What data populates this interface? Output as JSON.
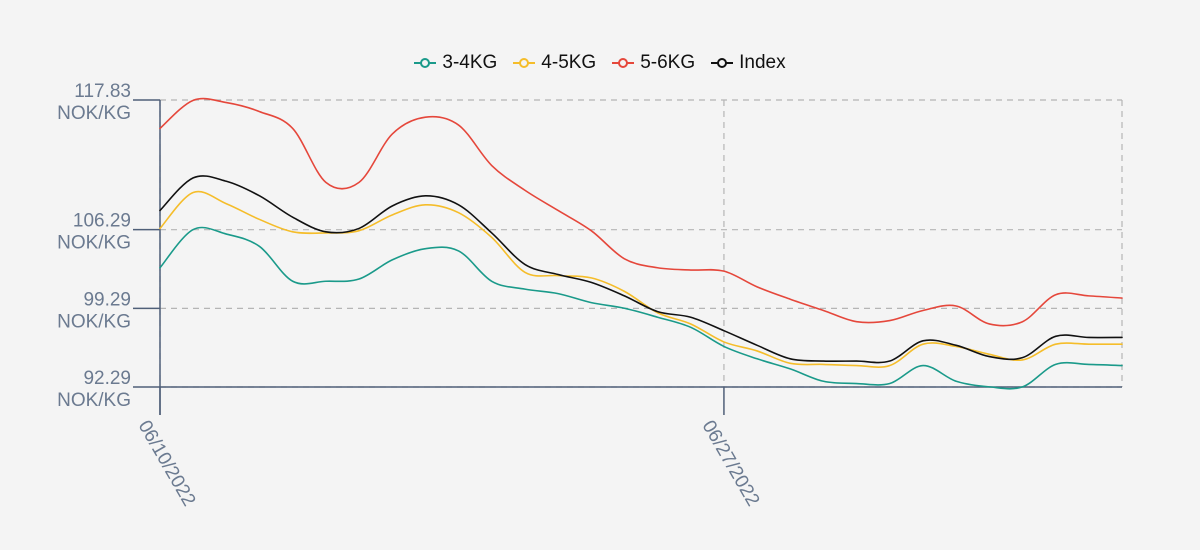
{
  "colors": {
    "series": [
      "#1a9a8a",
      "#f5bd2a",
      "#e5473b",
      "#111111"
    ],
    "axis": "#4f5f78",
    "grid": "#b5b5b5",
    "tick_text": "#6b7a90",
    "background": "#f4f4f4"
  },
  "chart_data": {
    "type": "line",
    "title": "",
    "xlabel": "",
    "ylabel": "",
    "unit": "NOK/KG",
    "legend_position": "top-center",
    "grid": true,
    "ylim": [
      92.29,
      117.83
    ],
    "y_ticks": [
      {
        "value": 117.83,
        "label_value": "117.83",
        "label_unit": "NOK/KG"
      },
      {
        "value": 106.29,
        "label_value": "106.29",
        "label_unit": "NOK/KG"
      },
      {
        "value": 99.29,
        "label_value": "99.29",
        "label_unit": "NOK/KG"
      },
      {
        "value": 92.29,
        "label_value": "92.29",
        "label_unit": "NOK/KG"
      }
    ],
    "x_ticks": [
      {
        "index": 0,
        "label": "06/10/2022"
      },
      {
        "index": 17,
        "label": "06/27/2022"
      }
    ],
    "x_count": 30,
    "series": [
      {
        "name": "3-4KG",
        "values": [
          102.9,
          106.3,
          105.9,
          104.8,
          101.7,
          101.7,
          101.9,
          103.6,
          104.6,
          104.4,
          101.7,
          101.0,
          100.6,
          99.8,
          99.3,
          98.5,
          97.6,
          95.9,
          94.8,
          93.9,
          92.8,
          92.6,
          92.6,
          94.2,
          92.8,
          92.3,
          92.3,
          94.3,
          94.3,
          94.2
        ]
      },
      {
        "name": "4-5KG",
        "values": [
          106.4,
          109.6,
          108.6,
          107.2,
          106.1,
          106.0,
          106.2,
          107.6,
          108.5,
          107.8,
          105.6,
          102.5,
          102.2,
          102.0,
          100.8,
          98.9,
          97.9,
          96.3,
          95.5,
          94.4,
          94.3,
          94.2,
          94.2,
          96.1,
          95.9,
          95.2,
          94.7,
          96.1,
          96.1,
          96.1
        ]
      },
      {
        "name": "5-6KG",
        "values": [
          115.3,
          117.8,
          117.6,
          116.8,
          115.3,
          110.5,
          110.5,
          114.8,
          116.3,
          115.6,
          112.0,
          109.8,
          108.0,
          106.2,
          103.7,
          102.9,
          102.7,
          102.6,
          101.2,
          100.1,
          99.1,
          98.1,
          98.2,
          99.1,
          99.5,
          97.9,
          98.1,
          100.5,
          100.4,
          100.2
        ]
      },
      {
        "name": "Index",
        "values": [
          108.0,
          110.9,
          110.6,
          109.3,
          107.4,
          106.1,
          106.4,
          108.4,
          109.3,
          108.5,
          106.0,
          103.2,
          102.3,
          101.6,
          100.4,
          99.0,
          98.5,
          97.3,
          96.0,
          94.8,
          94.6,
          94.6,
          94.6,
          96.4,
          96.0,
          95.0,
          94.9,
          96.8,
          96.7,
          96.7
        ]
      }
    ]
  }
}
